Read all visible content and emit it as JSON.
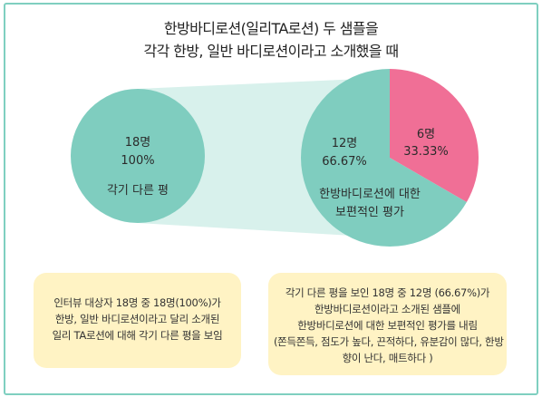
{
  "title": {
    "line1": "한방바디로션(일리TA로션) 두 샘플을",
    "line2": "각각 한방, 일반 바디로션이라고 소개했을 때"
  },
  "chart_data": [
    {
      "type": "pie",
      "slices": [
        {
          "count": "18명",
          "percent": "100%",
          "value": 18,
          "color": "#7fcdbf"
        }
      ],
      "label": "각기 다른 평"
    },
    {
      "type": "pie",
      "slices": [
        {
          "count": "6명",
          "percent": "33.33%",
          "value": 6,
          "color": "#f06f96"
        },
        {
          "count": "12명",
          "percent": "66.67%",
          "value": 12,
          "color": "#7fcdbf"
        }
      ],
      "label_lines": [
        "한방바디로션에 대한",
        "보편적인 평가"
      ]
    }
  ],
  "colors": {
    "teal": "#7fcdbf",
    "pink": "#f06f96",
    "connector": "#d8f1ec",
    "note_bg": "#fff3c4",
    "border": "#7fcfc0"
  },
  "notes": {
    "left": [
      "인터뷰 대상자 18명 중 18명(100%)가",
      "한방, 일반 바디로션이라고 달리 소개된",
      "일리 TA로션에 대해 각기 다른 평을 보임"
    ],
    "right": [
      "각기 다른 평을 보인 18명 중 12명 (66.67%)가",
      "한방바디로션이라고 소개된 샘플에",
      "한방바디로션에 대한 보편적인 평가를 내림",
      "(쫀득쫀득, 점도가 높다, 끈적하다, 유분감이 많다, 한방",
      "향이 난다, 매트하다 )"
    ]
  }
}
